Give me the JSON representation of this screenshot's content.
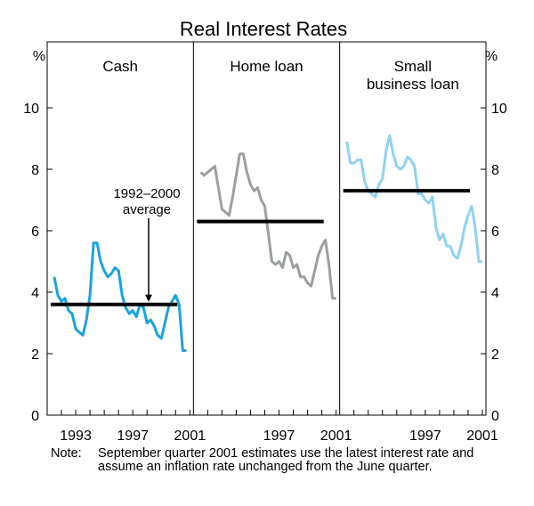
{
  "chart_data": {
    "type": "line",
    "title": "Real Interest Rates",
    "ylabel_left": "%",
    "ylabel_right": "%",
    "ylim": [
      0,
      12
    ],
    "yticks": [
      0,
      2,
      4,
      6,
      8,
      10
    ],
    "xlim": [
      1992,
      2001.75
    ],
    "average_label": "1992–2000 average",
    "average_label_lines": [
      "1992–2000",
      "average"
    ],
    "panels": [
      {
        "title_lines": [
          "Cash"
        ],
        "xticks": [
          "1993",
          "1997",
          "2001"
        ],
        "xtick_values": [
          1993,
          1997,
          2001
        ],
        "series": {
          "name": "Cash",
          "color": "#1ba3dc",
          "x": [
            1992.0,
            1992.25,
            1992.5,
            1992.75,
            1993.0,
            1993.25,
            1993.5,
            1993.75,
            1994.0,
            1994.25,
            1994.5,
            1994.75,
            1995.0,
            1995.25,
            1995.5,
            1995.75,
            1996.0,
            1996.25,
            1996.5,
            1996.75,
            1997.0,
            1997.25,
            1997.5,
            1997.75,
            1998.0,
            1998.25,
            1998.5,
            1998.75,
            1999.0,
            1999.25,
            1999.5,
            1999.75,
            2000.0,
            2000.25,
            2000.5,
            2000.75,
            2001.0,
            2001.25,
            2001.5
          ],
          "values": [
            4.5,
            3.9,
            3.7,
            3.8,
            3.4,
            3.3,
            2.8,
            2.7,
            2.6,
            3.1,
            3.9,
            5.6,
            5.6,
            5.0,
            4.7,
            4.5,
            4.6,
            4.8,
            4.7,
            3.9,
            3.5,
            3.3,
            3.4,
            3.2,
            3.6,
            3.5,
            3.0,
            3.1,
            2.9,
            2.6,
            2.5,
            3.0,
            3.5,
            3.7,
            3.9,
            3.6,
            2.1,
            2.1,
            null
          ]
        },
        "average": 3.6
      },
      {
        "title_lines": [
          "Home loan"
        ],
        "xticks": [
          "1997",
          "2001"
        ],
        "xtick_values": [
          1997,
          2001
        ],
        "series": {
          "name": "Home loan",
          "color": "#9b9fa2",
          "x": [
            1992.0,
            1992.25,
            1992.5,
            1992.75,
            1993.0,
            1993.25,
            1993.5,
            1993.75,
            1994.0,
            1994.25,
            1994.5,
            1994.75,
            1995.0,
            1995.25,
            1995.5,
            1995.75,
            1996.0,
            1996.25,
            1996.5,
            1996.75,
            1997.0,
            1997.25,
            1997.5,
            1997.75,
            1998.0,
            1998.25,
            1998.5,
            1998.75,
            1999.0,
            1999.25,
            1999.5,
            1999.75,
            2000.0,
            2000.25,
            2000.5,
            2000.75,
            2001.0,
            2001.25,
            2001.5
          ],
          "values": [
            7.9,
            7.8,
            7.9,
            8.0,
            8.1,
            7.4,
            6.7,
            6.6,
            6.5,
            7.1,
            7.8,
            8.5,
            8.5,
            7.9,
            7.5,
            7.3,
            7.4,
            7.0,
            6.8,
            5.9,
            5.0,
            4.9,
            5.0,
            4.8,
            5.3,
            5.2,
            4.8,
            4.9,
            4.5,
            4.5,
            4.3,
            4.2,
            4.7,
            5.2,
            5.5,
            5.7,
            4.9,
            3.8,
            3.8
          ]
        },
        "average": 6.3
      },
      {
        "title_lines": [
          "Small",
          "business loan"
        ],
        "xticks": [
          "1997",
          "2001"
        ],
        "xtick_values": [
          1997,
          2001
        ],
        "series": {
          "name": "Small business loan",
          "color": "#8fd3f2",
          "x": [
            1992.0,
            1992.25,
            1992.5,
            1992.75,
            1993.0,
            1993.25,
            1993.5,
            1993.75,
            1994.0,
            1994.25,
            1994.5,
            1994.75,
            1995.0,
            1995.25,
            1995.5,
            1995.75,
            1996.0,
            1996.25,
            1996.5,
            1996.75,
            1997.0,
            1997.25,
            1997.5,
            1997.75,
            1998.0,
            1998.25,
            1998.5,
            1998.75,
            1999.0,
            1999.25,
            1999.5,
            1999.75,
            2000.0,
            2000.25,
            2000.5,
            2000.75,
            2001.0,
            2001.25,
            2001.5
          ],
          "values": [
            8.9,
            8.2,
            8.2,
            8.3,
            8.3,
            7.6,
            7.3,
            7.2,
            7.1,
            7.5,
            7.7,
            8.6,
            9.1,
            8.5,
            8.1,
            8.0,
            8.1,
            8.4,
            8.3,
            8.1,
            7.2,
            7.2,
            7.0,
            6.9,
            7.1,
            6.1,
            5.7,
            5.9,
            5.5,
            5.5,
            5.2,
            5.1,
            5.5,
            6.1,
            6.5,
            6.8,
            6.1,
            5.0,
            5.0
          ]
        },
        "average": 7.3
      }
    ]
  },
  "note": {
    "label": "Note:",
    "text": "September quarter 2001 estimates use the latest interest rate and assume an inflation rate unchanged from the June quarter."
  }
}
